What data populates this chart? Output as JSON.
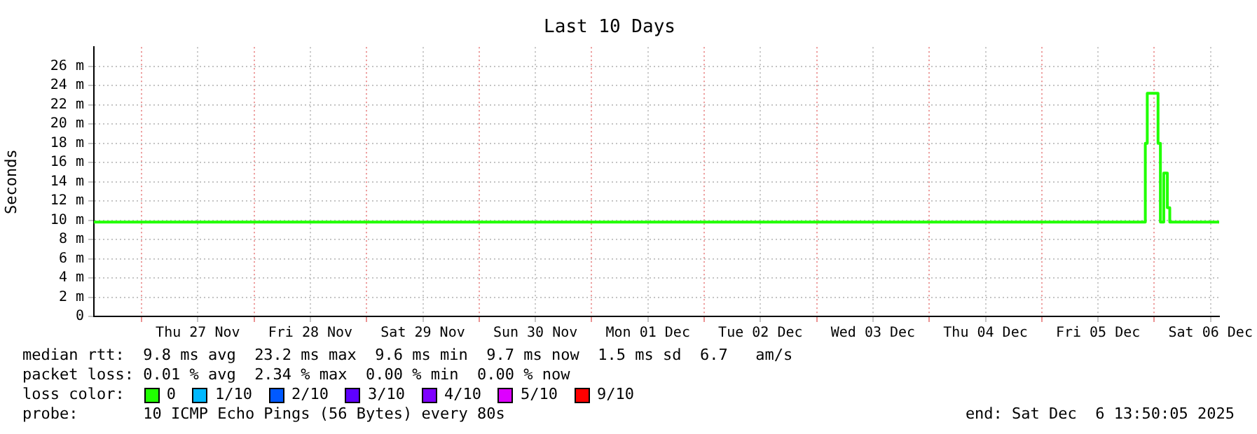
{
  "chart_data": {
    "type": "step",
    "title": "Last 10 Days",
    "ylabel": "Seconds",
    "xlim": [
      "2025-11-26T13:50",
      "2025-12-06T13:50"
    ],
    "xticks": [
      {
        "value": "2025-11-27T00:00",
        "label": null
      },
      {
        "value": "2025-11-27T12:00",
        "label": "Thu 27 Nov"
      },
      {
        "value": "2025-11-28T00:00",
        "label": null
      },
      {
        "value": "2025-11-28T12:00",
        "label": "Fri 28 Nov"
      },
      {
        "value": "2025-11-29T00:00",
        "label": null
      },
      {
        "value": "2025-11-29T12:00",
        "label": "Sat 29 Nov"
      },
      {
        "value": "2025-11-30T00:00",
        "label": null
      },
      {
        "value": "2025-11-30T12:00",
        "label": "Sun 30 Nov"
      },
      {
        "value": "2025-12-01T00:00",
        "label": null
      },
      {
        "value": "2025-12-01T12:00",
        "label": "Mon 01 Dec"
      },
      {
        "value": "2025-12-02T00:00",
        "label": null
      },
      {
        "value": "2025-12-02T12:00",
        "label": "Tue 02 Dec"
      },
      {
        "value": "2025-12-03T00:00",
        "label": null
      },
      {
        "value": "2025-12-03T12:00",
        "label": "Wed 03 Dec"
      },
      {
        "value": "2025-12-04T00:00",
        "label": null
      },
      {
        "value": "2025-12-04T12:00",
        "label": "Thu 04 Dec"
      },
      {
        "value": "2025-12-05T00:00",
        "label": null
      },
      {
        "value": "2025-12-05T12:00",
        "label": "Fri 05 Dec"
      },
      {
        "value": "2025-12-06T00:00",
        "label": null
      },
      {
        "value": "2025-12-06T12:00",
        "label": "Sat 06 Dec"
      }
    ],
    "ylim": [
      0,
      28
    ],
    "yticks": [
      0,
      {
        "value": 2,
        "label": "2 m"
      },
      {
        "value": 4,
        "label": "4 m"
      },
      {
        "value": 6,
        "label": "6 m"
      },
      {
        "value": 8,
        "label": "8 m"
      },
      {
        "value": 10,
        "label": "10 m"
      },
      {
        "value": 12,
        "label": "12 m"
      },
      {
        "value": 14,
        "label": "14 m"
      },
      {
        "value": 16,
        "label": "16 m"
      },
      {
        "value": 18,
        "label": "18 m"
      },
      {
        "value": 20,
        "label": "20 m"
      },
      {
        "value": 22,
        "label": "22 m"
      },
      {
        "value": 24,
        "label": "24 m"
      },
      {
        "value": 26,
        "label": "26 m"
      }
    ],
    "grid": true,
    "legend": "bottom",
    "legend_title": "loss color:",
    "series": [
      {
        "name": "0",
        "color": "#20ff00",
        "x": [
          "2025-11-26T13:50",
          "2025-12-05T22:05",
          "2025-12-05T22:30",
          "2025-12-06T00:48",
          "2025-12-06T01:18",
          "2025-12-06T02:01",
          "2025-12-06T02:47",
          "2025-12-06T03:18",
          "2025-12-06T13:50"
        ],
        "values": [
          9.8,
          18,
          23.2,
          18,
          9.8,
          14.9,
          11.3,
          9.8,
          9.8
        ]
      },
      {
        "name": "1/10",
        "color": "#00b8ff",
        "values": [
          null
        ]
      },
      {
        "name": "2/10",
        "color": "#0059ff",
        "values": [
          null
        ]
      },
      {
        "name": "3/10",
        "color": "#5e00ff",
        "values": [
          null
        ]
      },
      {
        "name": "4/10",
        "color": "#7e00ff",
        "values": [
          null
        ]
      },
      {
        "name": "5/10",
        "color": "#dd00ff",
        "values": [
          null
        ]
      },
      {
        "name": "9/10",
        "color": "#ff0000",
        "values": [
          null
        ]
      }
    ],
    "annotations": [
      "median rtt:  9.8 ms avg  23.2 ms max  9.6 ms min  9.7 ms now  1.5 ms sd  6.7   am/s",
      "packet loss: 0.01 % avg  2.34 % max  0.00 % min  0.00 % now",
      "probe:       10 ICMP Echo Pings (56 Bytes) every 80s",
      "end: Sat Dec  6 13:50:05 2025"
    ]
  }
}
